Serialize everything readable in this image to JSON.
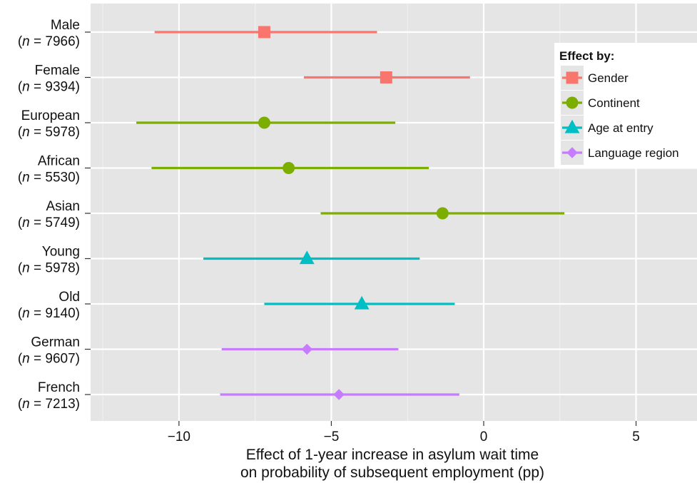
{
  "chart_data": {
    "type": "forest",
    "xlabel": [
      "Effect of 1-year increase in asylum wait time",
      "on probability of subsequent employment (pp)"
    ],
    "xlim": [
      -12.9,
      7.0
    ],
    "xticks": [
      -10,
      -5,
      0,
      5
    ],
    "xtick_labels": [
      "−10",
      "−5",
      "0",
      "5"
    ],
    "grid": true,
    "legend": {
      "title": "Effect by:",
      "position": "top-right",
      "entries": [
        {
          "name": "Gender",
          "color": "#F8766D",
          "shape": "square"
        },
        {
          "name": "Continent",
          "color": "#7CAE00",
          "shape": "circle"
        },
        {
          "name": "Age at entry",
          "color": "#00BFC4",
          "shape": "triangle"
        },
        {
          "name": "Language region",
          "color": "#C77CFF",
          "shape": "diamond"
        }
      ]
    },
    "rows": [
      {
        "label": "Male",
        "n": "7966",
        "group": "Gender",
        "estimate": -7.2,
        "lower": -10.8,
        "upper": -3.5
      },
      {
        "label": "Female",
        "n": "9394",
        "group": "Gender",
        "estimate": -3.2,
        "lower": -5.9,
        "upper": -0.45
      },
      {
        "label": "European",
        "n": "5978",
        "group": "Continent",
        "estimate": -7.2,
        "lower": -11.4,
        "upper": -2.9
      },
      {
        "label": "African",
        "n": "5530",
        "group": "Continent",
        "estimate": -6.4,
        "lower": -10.9,
        "upper": -1.8
      },
      {
        "label": "Asian",
        "n": "5749",
        "group": "Continent",
        "estimate": -1.35,
        "lower": -5.35,
        "upper": 2.65
      },
      {
        "label": "Young",
        "n": "5978",
        "group": "Age at entry",
        "estimate": -5.8,
        "lower": -9.2,
        "upper": -2.1
      },
      {
        "label": "Old",
        "n": "9140",
        "group": "Age at entry",
        "estimate": -4.0,
        "lower": -7.2,
        "upper": -0.95
      },
      {
        "label": "German",
        "n": "9607",
        "group": "Language region",
        "estimate": -5.8,
        "lower": -8.6,
        "upper": -2.8
      },
      {
        "label": "French",
        "n": "7213",
        "group": "Language region",
        "estimate": -4.75,
        "lower": -8.65,
        "upper": -0.8
      }
    ]
  }
}
